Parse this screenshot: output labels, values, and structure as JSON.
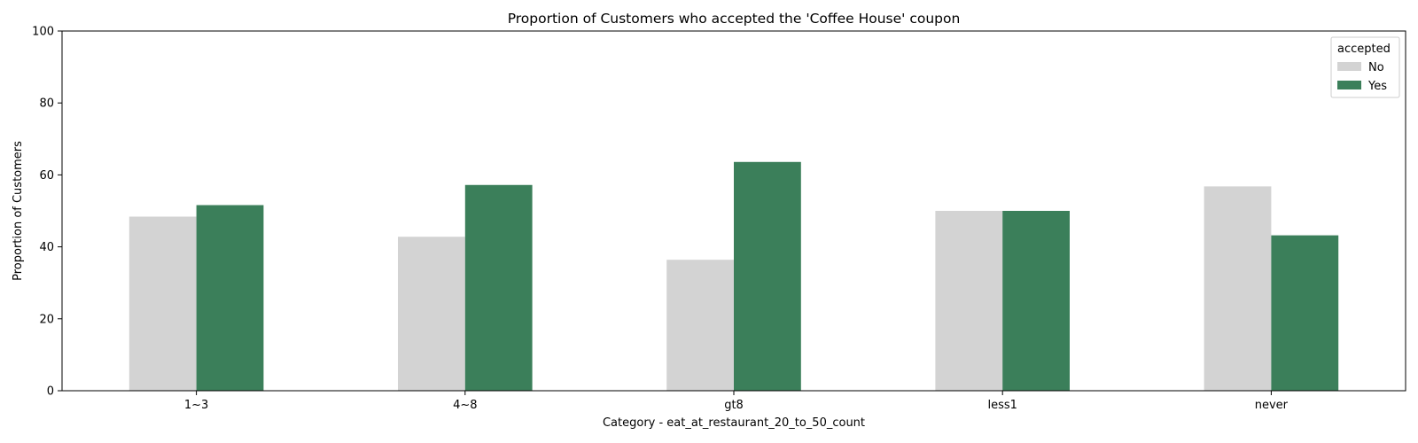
{
  "chart_data": {
    "type": "bar",
    "title": "Proportion of Customers who accepted the 'Coffee House' coupon",
    "xlabel": "Category - eat_at_restaurant_20_to_50_count",
    "ylabel": "Proportion of Customers",
    "categories": [
      "1~3",
      "4~8",
      "gt8",
      "less1",
      "never"
    ],
    "ylim": [
      0,
      100
    ],
    "yticks": [
      0,
      20,
      40,
      60,
      80,
      100
    ],
    "grid": false,
    "legend": {
      "title": "accepted",
      "placement": "top-right"
    },
    "series": [
      {
        "name": "No",
        "color": "#d3d3d3",
        "values": [
          48.4,
          42.8,
          36.4,
          50.0,
          56.8
        ]
      },
      {
        "name": "Yes",
        "color": "#3b7f5a",
        "values": [
          51.6,
          57.2,
          63.6,
          50.0,
          43.2
        ]
      }
    ]
  }
}
